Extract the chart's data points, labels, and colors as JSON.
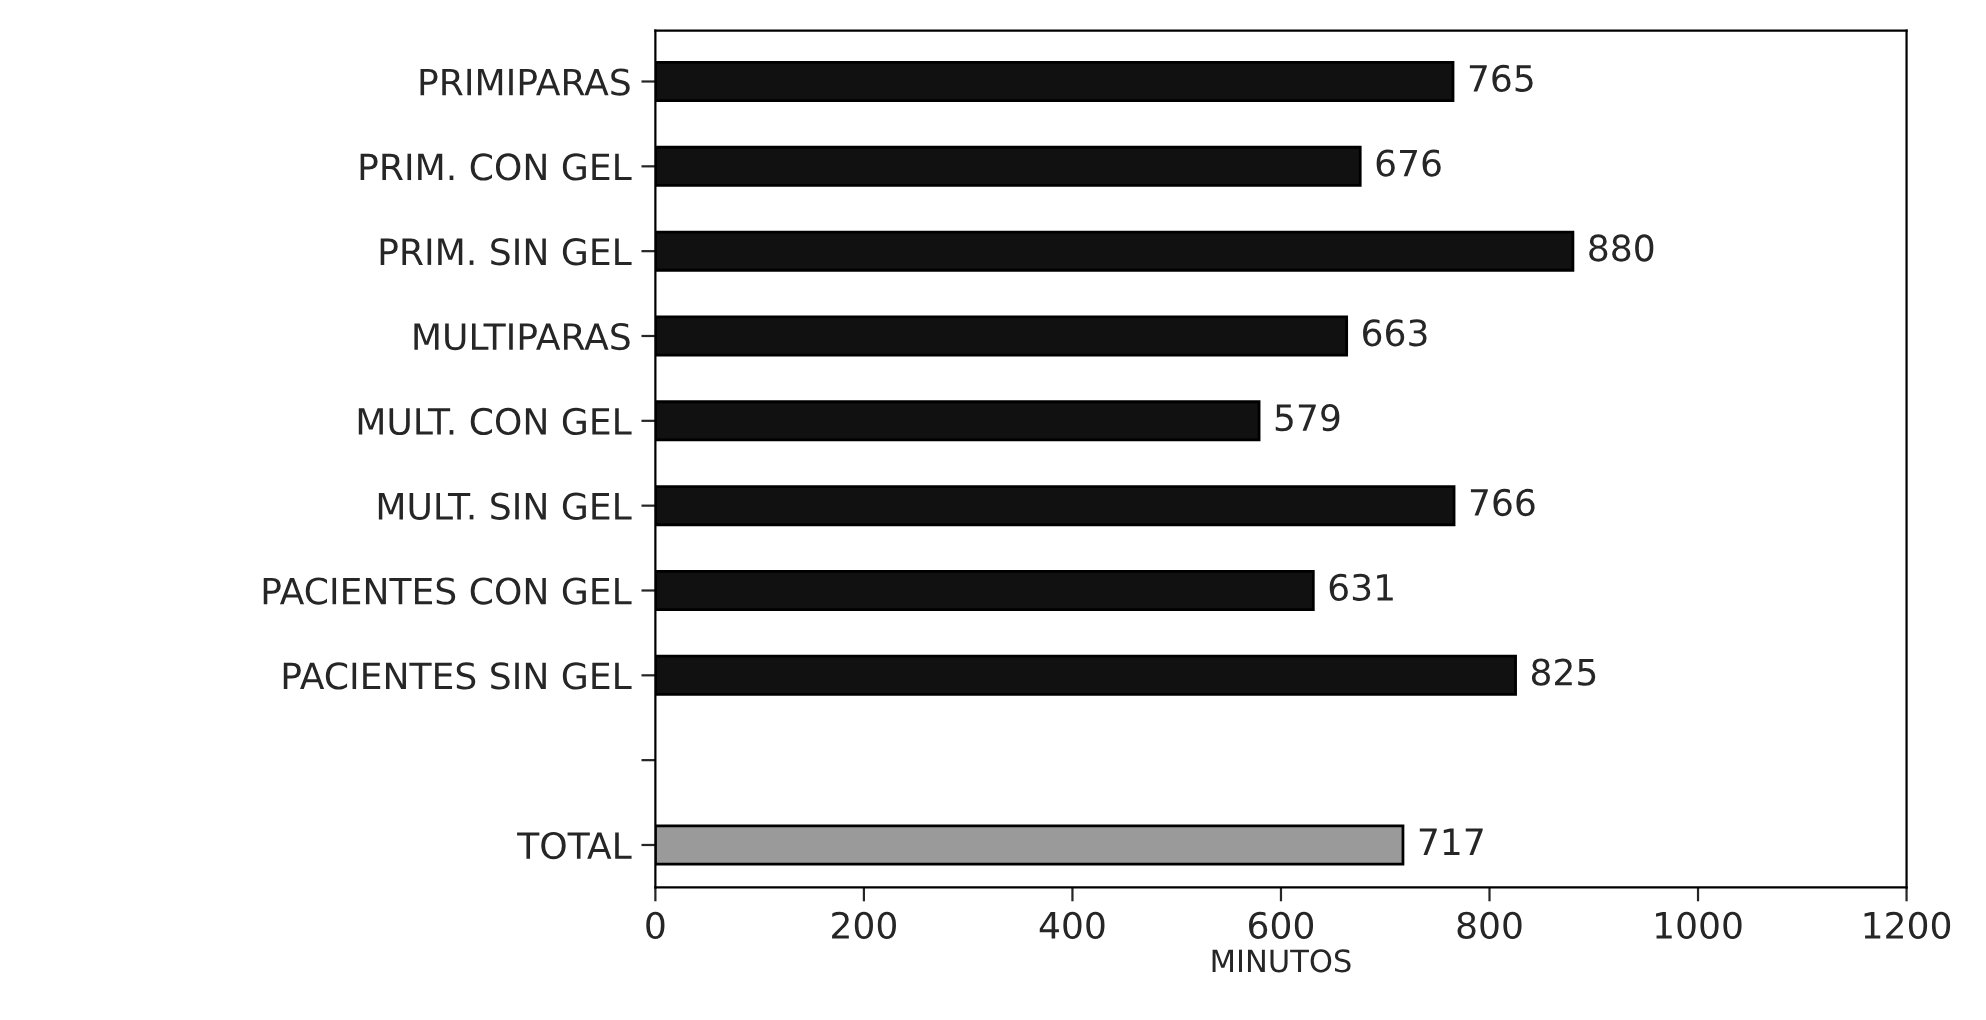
{
  "chart_data": {
    "type": "bar",
    "orientation": "horizontal",
    "xlabel": "MINUTOS",
    "categories": [
      "PRIMIPARAS",
      "PRIM. CON GEL",
      "PRIM. SIN GEL",
      "MULTIPARAS",
      "MULT. CON GEL",
      "MULT. SIN GEL",
      "PACIENTES CON GEL",
      "PACIENTES SIN GEL",
      null,
      "TOTAL"
    ],
    "values": [
      765,
      676,
      880,
      663,
      579,
      766,
      631,
      825,
      null,
      717
    ],
    "colors": [
      "#111111",
      "#111111",
      "#111111",
      "#111111",
      "#111111",
      "#111111",
      "#111111",
      "#111111",
      "#111111",
      "#9a9a9a"
    ],
    "xlim": [
      0,
      1200
    ],
    "xticks": [
      0,
      200,
      400,
      600,
      800,
      1000,
      1200
    ],
    "data_labels": true,
    "grid": false
  }
}
